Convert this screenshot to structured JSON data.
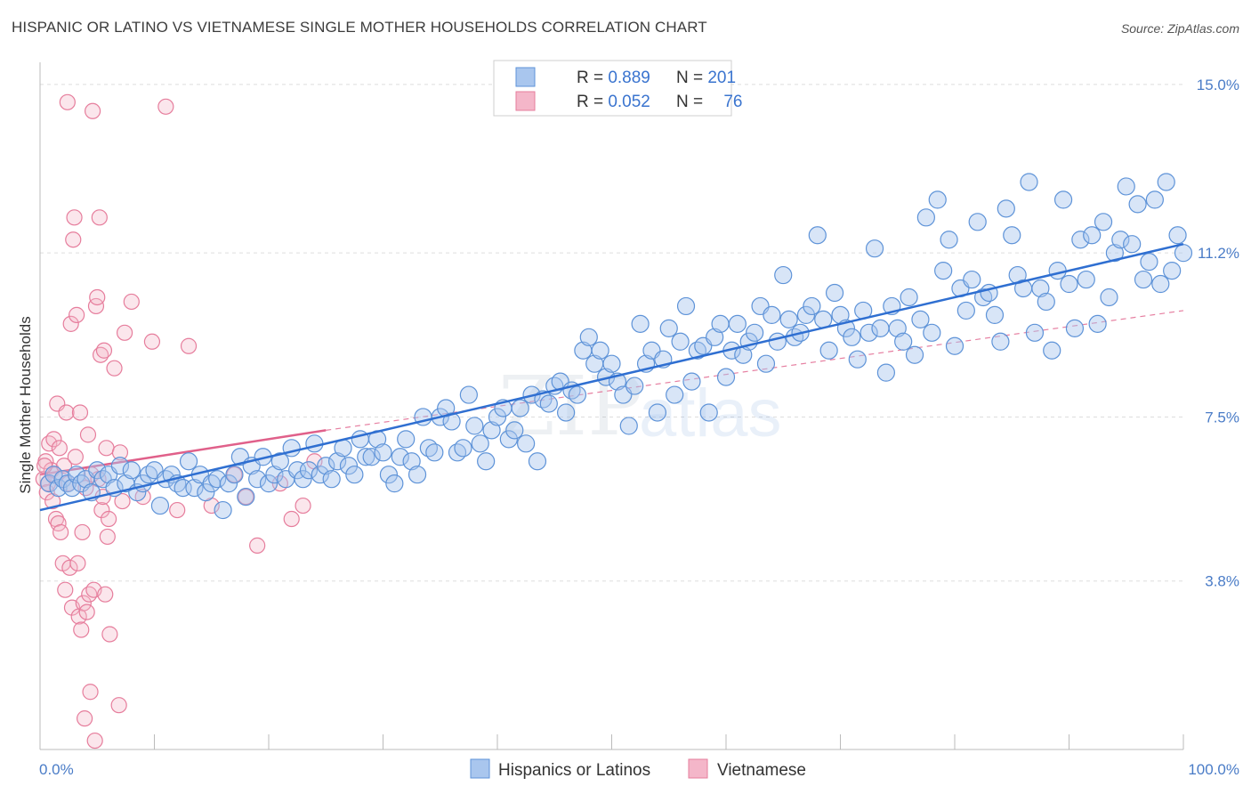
{
  "header": {
    "title": "HISPANIC OR LATINO VS VIETNAMESE SINGLE MOTHER HOUSEHOLDS CORRELATION CHART",
    "source": "Source: ZipAtlas.com"
  },
  "legend_top": {
    "rows": [
      {
        "r_label": "R = ",
        "r_value": "0.889",
        "n_label": "N = ",
        "n_value": "201"
      },
      {
        "r_label": "R = ",
        "r_value": "0.052",
        "n_label": "N = ",
        "n_value": "76"
      }
    ]
  },
  "legend_bottom": [
    "Hispanics or Latinos",
    "Vietnamese"
  ],
  "watermark": {
    "zip": "ZIP",
    "atlas": "atlas"
  },
  "colors": {
    "blue_fill": "#a9c6ee",
    "blue_stroke": "#5e93d8",
    "blue_line": "#2f6fd1",
    "pink_fill": "#f4b6c9",
    "pink_stroke": "#e67d9c",
    "pink_line": "#e0608a",
    "label_blue": "#4a7cc7",
    "grid": "#dddddd"
  },
  "chart_data": {
    "type": "scatter",
    "title": "HISPANIC OR LATINO VS VIETNAMESE SINGLE MOTHER HOUSEHOLDS CORRELATION CHART",
    "xlabel": "",
    "ylabel": "Single Mother Households",
    "xlim": [
      0,
      100
    ],
    "ylim": [
      0.0,
      15.5
    ],
    "x_tick_labels": [
      "0.0%",
      "100.0%"
    ],
    "y_ticks": [
      3.8,
      7.5,
      11.2,
      15.0
    ],
    "y_tick_labels": [
      "3.8%",
      "7.5%",
      "11.2%",
      "15.0%"
    ],
    "grid": true,
    "legend_position": "top-center",
    "series": [
      {
        "name": "Hispanics or Latinos",
        "r": 0.889,
        "n": 201,
        "trend": {
          "x": [
            0,
            100
          ],
          "y": [
            5.4,
            11.4
          ],
          "style": "solid"
        },
        "points": [
          [
            0.8,
            6.0
          ],
          [
            1.2,
            6.2
          ],
          [
            1.6,
            5.9
          ],
          [
            2.0,
            6.1
          ],
          [
            2.4,
            6.0
          ],
          [
            2.8,
            5.9
          ],
          [
            3.2,
            6.2
          ],
          [
            3.6,
            6.0
          ],
          [
            4.0,
            6.1
          ],
          [
            4.5,
            5.8
          ],
          [
            5.0,
            6.3
          ],
          [
            5.5,
            6.1
          ],
          [
            6.0,
            6.2
          ],
          [
            6.5,
            5.9
          ],
          [
            7.0,
            6.4
          ],
          [
            7.5,
            6.0
          ],
          [
            8.0,
            6.3
          ],
          [
            8.5,
            5.8
          ],
          [
            9.0,
            6.0
          ],
          [
            9.5,
            6.2
          ],
          [
            10.0,
            6.3
          ],
          [
            10.5,
            5.5
          ],
          [
            11.0,
            6.1
          ],
          [
            11.5,
            6.2
          ],
          [
            12.0,
            6.0
          ],
          [
            12.5,
            5.9
          ],
          [
            13.0,
            6.5
          ],
          [
            13.5,
            5.9
          ],
          [
            14.0,
            6.2
          ],
          [
            14.5,
            5.8
          ],
          [
            15.0,
            6.0
          ],
          [
            15.5,
            6.1
          ],
          [
            16.0,
            5.4
          ],
          [
            16.5,
            6.0
          ],
          [
            17.0,
            6.2
          ],
          [
            17.5,
            6.6
          ],
          [
            18.0,
            5.7
          ],
          [
            18.5,
            6.4
          ],
          [
            19.0,
            6.1
          ],
          [
            19.5,
            6.6
          ],
          [
            20.0,
            6.0
          ],
          [
            20.5,
            6.2
          ],
          [
            21.0,
            6.5
          ],
          [
            21.5,
            6.1
          ],
          [
            22.0,
            6.8
          ],
          [
            22.5,
            6.3
          ],
          [
            23.0,
            6.1
          ],
          [
            23.5,
            6.3
          ],
          [
            24.0,
            6.9
          ],
          [
            24.5,
            6.2
          ],
          [
            25.0,
            6.4
          ],
          [
            25.5,
            6.1
          ],
          [
            26.0,
            6.5
          ],
          [
            26.5,
            6.8
          ],
          [
            27.0,
            6.4
          ],
          [
            27.5,
            6.2
          ],
          [
            28.0,
            7.0
          ],
          [
            28.5,
            6.6
          ],
          [
            29.0,
            6.6
          ],
          [
            29.5,
            7.0
          ],
          [
            30.0,
            6.7
          ],
          [
            30.5,
            6.2
          ],
          [
            31.0,
            6.0
          ],
          [
            31.5,
            6.6
          ],
          [
            32.0,
            7.0
          ],
          [
            32.5,
            6.5
          ],
          [
            33.0,
            6.2
          ],
          [
            33.5,
            7.5
          ],
          [
            34.0,
            6.8
          ],
          [
            34.5,
            6.7
          ],
          [
            35.0,
            7.5
          ],
          [
            35.5,
            7.7
          ],
          [
            36.0,
            7.4
          ],
          [
            36.5,
            6.7
          ],
          [
            37.0,
            6.8
          ],
          [
            37.5,
            8.0
          ],
          [
            38.0,
            7.3
          ],
          [
            38.5,
            6.9
          ],
          [
            39.0,
            6.5
          ],
          [
            39.5,
            7.2
          ],
          [
            40.0,
            7.5
          ],
          [
            40.5,
            7.7
          ],
          [
            41.0,
            7.0
          ],
          [
            41.5,
            7.2
          ],
          [
            42.0,
            7.7
          ],
          [
            42.5,
            6.9
          ],
          [
            43.0,
            8.0
          ],
          [
            43.5,
            6.5
          ],
          [
            44.0,
            7.9
          ],
          [
            44.5,
            7.8
          ],
          [
            45.0,
            8.2
          ],
          [
            45.5,
            8.3
          ],
          [
            46.0,
            7.6
          ],
          [
            46.5,
            8.1
          ],
          [
            47.0,
            8.0
          ],
          [
            47.5,
            9.0
          ],
          [
            48.0,
            9.3
          ],
          [
            48.5,
            8.7
          ],
          [
            49.0,
            9.0
          ],
          [
            49.5,
            8.4
          ],
          [
            50.0,
            8.7
          ],
          [
            50.5,
            8.3
          ],
          [
            51.0,
            8.0
          ],
          [
            51.5,
            7.3
          ],
          [
            52.0,
            8.2
          ],
          [
            52.5,
            9.6
          ],
          [
            53.0,
            8.7
          ],
          [
            53.5,
            9.0
          ],
          [
            54.0,
            7.6
          ],
          [
            54.5,
            8.8
          ],
          [
            55.0,
            9.5
          ],
          [
            55.5,
            8.0
          ],
          [
            56.0,
            9.2
          ],
          [
            56.5,
            10.0
          ],
          [
            57.0,
            8.3
          ],
          [
            57.5,
            9.0
          ],
          [
            58.0,
            9.1
          ],
          [
            58.5,
            7.6
          ],
          [
            59.0,
            9.3
          ],
          [
            59.5,
            9.6
          ],
          [
            60.0,
            8.4
          ],
          [
            60.5,
            9.0
          ],
          [
            61.0,
            9.6
          ],
          [
            61.5,
            8.9
          ],
          [
            62.0,
            9.2
          ],
          [
            62.5,
            9.4
          ],
          [
            63.0,
            10.0
          ],
          [
            63.5,
            8.7
          ],
          [
            64.0,
            9.8
          ],
          [
            64.5,
            9.2
          ],
          [
            65.0,
            10.7
          ],
          [
            65.5,
            9.7
          ],
          [
            66.0,
            9.3
          ],
          [
            66.5,
            9.4
          ],
          [
            67.0,
            9.8
          ],
          [
            67.5,
            10.0
          ],
          [
            68.0,
            11.6
          ],
          [
            68.5,
            9.7
          ],
          [
            69.0,
            9.0
          ],
          [
            69.5,
            10.3
          ],
          [
            70.0,
            9.8
          ],
          [
            70.5,
            9.5
          ],
          [
            71.0,
            9.3
          ],
          [
            71.5,
            8.8
          ],
          [
            72.0,
            9.9
          ],
          [
            72.5,
            9.4
          ],
          [
            73.0,
            11.3
          ],
          [
            73.5,
            9.5
          ],
          [
            74.0,
            8.5
          ],
          [
            74.5,
            10.0
          ],
          [
            75.0,
            9.5
          ],
          [
            75.5,
            9.2
          ],
          [
            76.0,
            10.2
          ],
          [
            76.5,
            8.9
          ],
          [
            77.0,
            9.7
          ],
          [
            77.5,
            12.0
          ],
          [
            78.0,
            9.4
          ],
          [
            78.5,
            12.4
          ],
          [
            79.0,
            10.8
          ],
          [
            79.5,
            11.5
          ],
          [
            80.0,
            9.1
          ],
          [
            80.5,
            10.4
          ],
          [
            81.0,
            9.9
          ],
          [
            81.5,
            10.6
          ],
          [
            82.0,
            11.9
          ],
          [
            82.5,
            10.2
          ],
          [
            83.0,
            10.3
          ],
          [
            83.5,
            9.8
          ],
          [
            84.0,
            9.2
          ],
          [
            84.5,
            12.2
          ],
          [
            85.0,
            11.6
          ],
          [
            85.5,
            10.7
          ],
          [
            86.0,
            10.4
          ],
          [
            86.5,
            12.8
          ],
          [
            87.0,
            9.4
          ],
          [
            87.5,
            10.4
          ],
          [
            88.0,
            10.1
          ],
          [
            88.5,
            9.0
          ],
          [
            89.0,
            10.8
          ],
          [
            89.5,
            12.4
          ],
          [
            90.0,
            10.5
          ],
          [
            90.5,
            9.5
          ],
          [
            91.0,
            11.5
          ],
          [
            91.5,
            10.6
          ],
          [
            92.0,
            11.6
          ],
          [
            92.5,
            9.6
          ],
          [
            93.0,
            11.9
          ],
          [
            93.5,
            10.2
          ],
          [
            94.0,
            11.2
          ],
          [
            94.5,
            11.5
          ],
          [
            95.0,
            12.7
          ],
          [
            95.5,
            11.4
          ],
          [
            96.0,
            12.3
          ],
          [
            96.5,
            10.6
          ],
          [
            97.0,
            11.0
          ],
          [
            97.5,
            12.4
          ],
          [
            98.0,
            10.5
          ],
          [
            98.5,
            12.8
          ],
          [
            99.0,
            10.8
          ],
          [
            99.5,
            11.6
          ],
          [
            100.0,
            11.2
          ]
        ]
      },
      {
        "name": "Vietnamese",
        "r": 0.052,
        "n": 76,
        "trend": {
          "x": [
            0,
            25
          ],
          "y": [
            6.2,
            7.2
          ],
          "style": "solid",
          "extended_x": [
            25,
            100
          ],
          "extended_y": [
            7.2,
            9.9
          ]
        },
        "points": [
          [
            0.3,
            6.1
          ],
          [
            0.5,
            6.5
          ],
          [
            0.6,
            5.8
          ],
          [
            0.8,
            6.9
          ],
          [
            1.0,
            6.3
          ],
          [
            1.1,
            5.6
          ],
          [
            1.2,
            7.0
          ],
          [
            1.3,
            6.2
          ],
          [
            1.4,
            5.2
          ],
          [
            1.5,
            7.8
          ],
          [
            1.6,
            5.1
          ],
          [
            1.7,
            6.8
          ],
          [
            1.8,
            4.9
          ],
          [
            2.0,
            4.2
          ],
          [
            2.1,
            6.4
          ],
          [
            2.2,
            3.6
          ],
          [
            2.3,
            7.6
          ],
          [
            2.4,
            14.6
          ],
          [
            2.5,
            6.0
          ],
          [
            2.6,
            4.1
          ],
          [
            2.7,
            9.6
          ],
          [
            2.8,
            3.2
          ],
          [
            2.9,
            11.5
          ],
          [
            3.0,
            12.0
          ],
          [
            3.1,
            6.6
          ],
          [
            3.2,
            9.8
          ],
          [
            3.3,
            4.2
          ],
          [
            3.4,
            3.0
          ],
          [
            3.5,
            7.6
          ],
          [
            3.6,
            2.7
          ],
          [
            3.7,
            4.9
          ],
          [
            3.8,
            3.3
          ],
          [
            3.9,
            0.7
          ],
          [
            4.0,
            5.9
          ],
          [
            4.1,
            3.1
          ],
          [
            4.2,
            7.1
          ],
          [
            4.3,
            3.5
          ],
          [
            4.4,
            1.3
          ],
          [
            4.5,
            6.2
          ],
          [
            4.6,
            14.4
          ],
          [
            4.7,
            3.6
          ],
          [
            4.8,
            0.2
          ],
          [
            4.9,
            10.0
          ],
          [
            5.0,
            10.2
          ],
          [
            5.1,
            6.1
          ],
          [
            5.2,
            12.0
          ],
          [
            5.3,
            8.9
          ],
          [
            5.4,
            5.4
          ],
          [
            5.5,
            5.7
          ],
          [
            5.6,
            9.0
          ],
          [
            5.7,
            3.5
          ],
          [
            5.8,
            6.8
          ],
          [
            5.9,
            4.8
          ],
          [
            6.0,
            5.2
          ],
          [
            6.1,
            2.6
          ],
          [
            6.5,
            8.6
          ],
          [
            6.9,
            1.0
          ],
          [
            7.0,
            6.7
          ],
          [
            7.2,
            5.6
          ],
          [
            7.4,
            9.4
          ],
          [
            8.0,
            10.1
          ],
          [
            9.0,
            5.7
          ],
          [
            9.8,
            9.2
          ],
          [
            11.0,
            14.5
          ],
          [
            12.0,
            5.4
          ],
          [
            13.0,
            9.1
          ],
          [
            15.0,
            5.5
          ],
          [
            17.0,
            6.2
          ],
          [
            18.0,
            5.7
          ],
          [
            19.0,
            4.6
          ],
          [
            21.0,
            6.0
          ],
          [
            22.0,
            5.2
          ],
          [
            23.0,
            5.5
          ],
          [
            24.0,
            6.5
          ],
          [
            0.4,
            6.4
          ],
          [
            0.7,
            6.0
          ]
        ]
      }
    ]
  }
}
